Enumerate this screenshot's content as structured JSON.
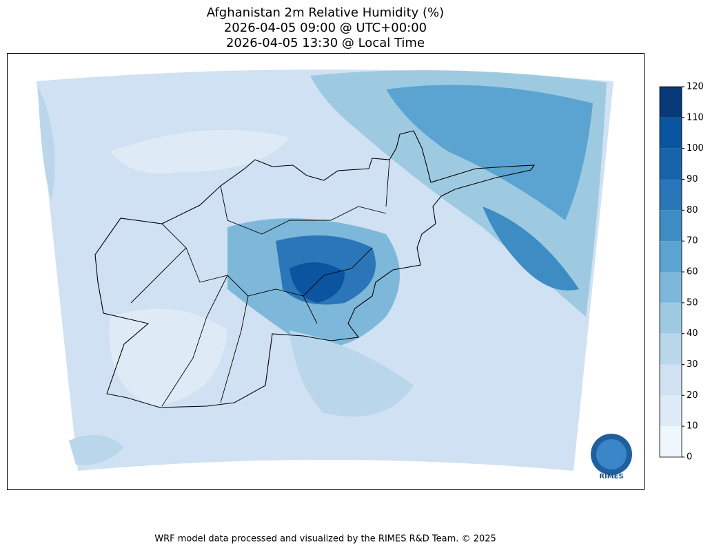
{
  "title": [
    "Afghanistan 2m Relative Humidity (%)",
    "2026-04-05 09:00 @ UTC+00:00",
    "2026-04-05 13:30 @ Local Time"
  ],
  "colorbar": {
    "levels": [
      0,
      10,
      20,
      30,
      40,
      50,
      60,
      70,
      80,
      90,
      100,
      110,
      120
    ],
    "colors": [
      "#f0f6fd",
      "#deebf7",
      "#cfe1f2",
      "#b9d6eb",
      "#9ecae1",
      "#7db8da",
      "#5ba3d0",
      "#3d8dc4",
      "#2a76b8",
      "#1764ab",
      "#0a54a0",
      "#083a7a"
    ],
    "ticks": [
      0,
      10,
      20,
      30,
      40,
      50,
      60,
      70,
      80,
      90,
      100,
      110,
      120
    ]
  },
  "logo": "RIMES",
  "footer": "WRF model data processed and visualized by the RIMES R&D Team. © 2025"
}
